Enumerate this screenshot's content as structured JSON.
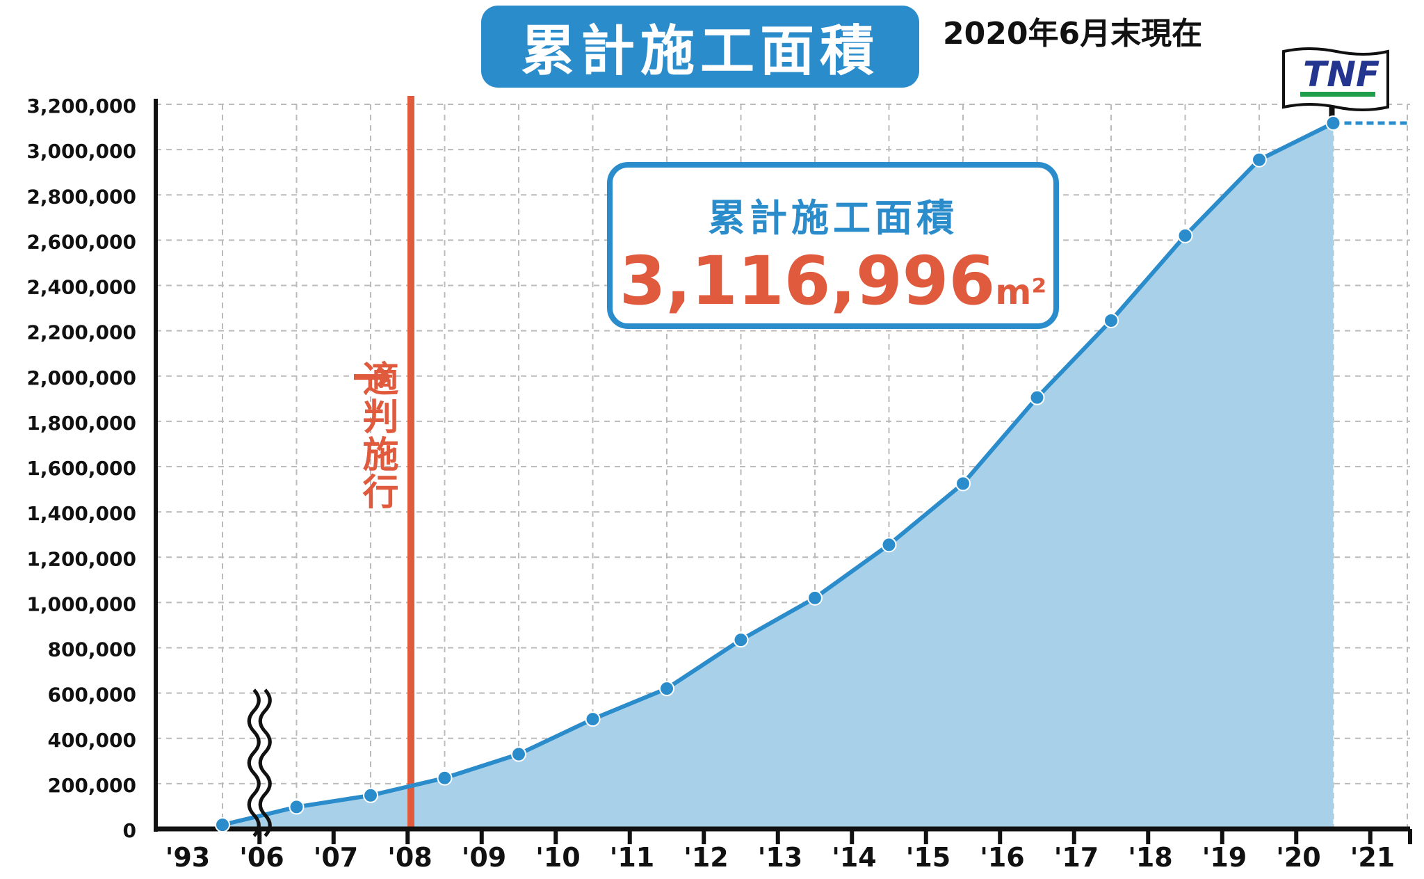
{
  "header": {
    "title": "累計施工面積",
    "as_of": "2020年6月末現在"
  },
  "callout": {
    "label": "累計施工面積",
    "value": "3,116,996",
    "unit": "m²"
  },
  "annotation": {
    "arrow": "→",
    "label": "適判施行"
  },
  "logo": {
    "text": "TNF"
  },
  "colors": {
    "line": "#2b8ccb",
    "area": "#a8d0e8",
    "accent_red": "#e05a3d",
    "grid": "#bbbbbb",
    "logo_green": "#1e9e4a",
    "logo_blue": "#23358f"
  },
  "chart_data": {
    "type": "area",
    "title": "",
    "xlabel": "",
    "ylabel": "",
    "categories": [
      "'93",
      "'06",
      "'07",
      "'08",
      "'09",
      "'10",
      "'11",
      "'12",
      "'13",
      "'14",
      "'15",
      "'16",
      "'17",
      "'18",
      "'19",
      "'20",
      "'21"
    ],
    "y_ticks": [
      "0",
      "200,000",
      "400,000",
      "600,000",
      "800,000",
      "1,000,000",
      "1,200,000",
      "1,400,000",
      "1,600,000",
      "1,800,000",
      "2,000,000",
      "2,200,000",
      "2,400,000",
      "2,600,000",
      "2,800,000",
      "3,000,000",
      "3,200,000"
    ],
    "ylim": [
      0,
      3200000
    ],
    "grid": true,
    "axis_break": "between '93 and '06",
    "reference_line": {
      "at": "'07",
      "label": "適判施行"
    },
    "series": [
      {
        "points": [
          {
            "x": "'93",
            "y": 18000
          },
          {
            "x": "'06",
            "y": 97000
          },
          {
            "x": "'07",
            "y": 148000
          },
          {
            "x": "'08",
            "y": 225000
          },
          {
            "x": "'09",
            "y": 330000
          },
          {
            "x": "'10",
            "y": 485000
          },
          {
            "x": "'11",
            "y": 620000
          },
          {
            "x": "'12",
            "y": 835000
          },
          {
            "x": "'13",
            "y": 1020000
          },
          {
            "x": "'14",
            "y": 1255000
          },
          {
            "x": "'15",
            "y": 1525000
          },
          {
            "x": "'16",
            "y": 1905000
          },
          {
            "x": "'17",
            "y": 2245000
          },
          {
            "x": "'18",
            "y": 2620000
          },
          {
            "x": "'19",
            "y": 2955000
          },
          {
            "x": "'20",
            "y": 3116996
          }
        ]
      }
    ]
  }
}
